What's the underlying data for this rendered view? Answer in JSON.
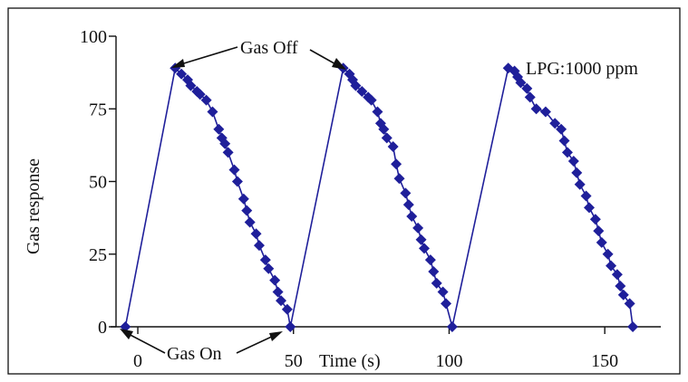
{
  "chart_data": {
    "type": "line",
    "xlabel": "Time (s)",
    "ylabel": "Gas response",
    "xlim": [
      -7,
      168
    ],
    "ylim": [
      0,
      100
    ],
    "x_ticks": [
      "0",
      "50",
      "100",
      "150"
    ],
    "y_ticks": [
      "0",
      "25",
      "50",
      "75",
      "100"
    ],
    "grid": false,
    "series": [
      {
        "color": "#1f1f9a",
        "marker": "diamond",
        "points": [
          [
            -4,
            0
          ],
          [
            12,
            89
          ],
          [
            14,
            87
          ],
          [
            16,
            85
          ],
          [
            17,
            83
          ],
          [
            19,
            81
          ],
          [
            20,
            80
          ],
          [
            22,
            78
          ],
          [
            24,
            74
          ],
          [
            26,
            68
          ],
          [
            27,
            65
          ],
          [
            28,
            63
          ],
          [
            29,
            60
          ],
          [
            31,
            54
          ],
          [
            32,
            50
          ],
          [
            34,
            44
          ],
          [
            35,
            40
          ],
          [
            36,
            36
          ],
          [
            38,
            32
          ],
          [
            39,
            28
          ],
          [
            41,
            23
          ],
          [
            42,
            20
          ],
          [
            44,
            16
          ],
          [
            45,
            12
          ],
          [
            46,
            9
          ],
          [
            48,
            6
          ],
          [
            49,
            0
          ],
          [
            66,
            89
          ],
          [
            68,
            87
          ],
          [
            69,
            85
          ],
          [
            70,
            83
          ],
          [
            72,
            81
          ],
          [
            74,
            79
          ],
          [
            75,
            78
          ],
          [
            77,
            74
          ],
          [
            78,
            70
          ],
          [
            79,
            68
          ],
          [
            80,
            65
          ],
          [
            82,
            62
          ],
          [
            83,
            56
          ],
          [
            84,
            51
          ],
          [
            86,
            46
          ],
          [
            87,
            42
          ],
          [
            88,
            38
          ],
          [
            90,
            34
          ],
          [
            91,
            30
          ],
          [
            92,
            27
          ],
          [
            94,
            23
          ],
          [
            95,
            19
          ],
          [
            96,
            15
          ],
          [
            98,
            12
          ],
          [
            99,
            8
          ],
          [
            101,
            0
          ],
          [
            119,
            89
          ],
          [
            121,
            88
          ],
          [
            122,
            86
          ],
          [
            123,
            84
          ],
          [
            125,
            82
          ],
          [
            126,
            79
          ],
          [
            128,
            75
          ],
          [
            131,
            74
          ],
          [
            134,
            70
          ],
          [
            136,
            68
          ],
          [
            137,
            64
          ],
          [
            138,
            60
          ],
          [
            140,
            57
          ],
          [
            141,
            53
          ],
          [
            142,
            49
          ],
          [
            144,
            45
          ],
          [
            145,
            41
          ],
          [
            147,
            37
          ],
          [
            148,
            33
          ],
          [
            149,
            29
          ],
          [
            151,
            25
          ],
          [
            152,
            21
          ],
          [
            154,
            18
          ],
          [
            155,
            14
          ],
          [
            156,
            11
          ],
          [
            158,
            8
          ],
          [
            159,
            0
          ]
        ]
      }
    ],
    "annotations": {
      "gas_off": "Gas Off",
      "gas_on": "Gas On",
      "concentration": "LPG:1000 ppm"
    }
  }
}
